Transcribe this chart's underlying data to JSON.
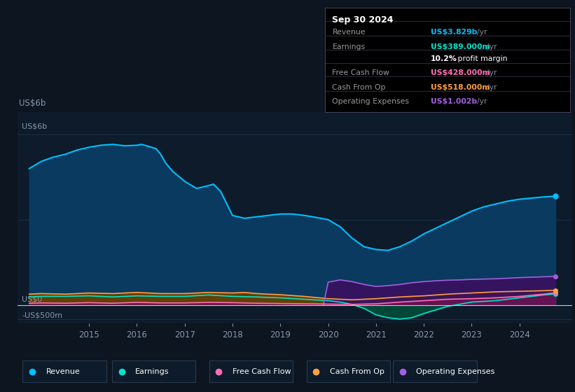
{
  "bg_color": "#0c1520",
  "plot_bg_color": "#0d1b2a",
  "chart_bg_darker": "#091219",
  "ylabel_top": "US$6b",
  "ylabel_zero": "US$0",
  "ylabel_neg": "-US$500m",
  "ylim": [
    -0.65,
    6.8
  ],
  "text_color": "#8899aa",
  "grid_color": "#1e3550",
  "zero_line_color": "#bbccdd",
  "title_box": {
    "date": "Sep 30 2024",
    "rows": [
      {
        "label": "Revenue",
        "value": "US$3.829b",
        "unit": "/yr",
        "value_color": "#00bfff",
        "bold_value": true
      },
      {
        "label": "Earnings",
        "value": "US$389.000m",
        "unit": "/yr",
        "value_color": "#00e5cc",
        "bold_value": true
      },
      {
        "label": "",
        "value": "10.2%",
        "unit": " profit margin",
        "value_color": "#ffffff",
        "bold_value": true
      },
      {
        "label": "Free Cash Flow",
        "value": "US$428.000m",
        "unit": "/yr",
        "value_color": "#ff6eb4",
        "bold_value": true
      },
      {
        "label": "Cash From Op",
        "value": "US$518.000m",
        "unit": "/yr",
        "value_color": "#ffa040",
        "bold_value": true
      },
      {
        "label": "Operating Expenses",
        "value": "US$1.002b",
        "unit": "/yr",
        "value_color": "#a060e0",
        "bold_value": true
      }
    ]
  },
  "series": {
    "revenue": {
      "color": "#00bfff",
      "fill_color": "#0a3a5f",
      "label": "Revenue",
      "x": [
        2013.75,
        2014.0,
        2014.25,
        2014.5,
        2014.75,
        2015.0,
        2015.25,
        2015.5,
        2015.75,
        2016.0,
        2016.1,
        2016.25,
        2016.4,
        2016.5,
        2016.6,
        2016.75,
        2017.0,
        2017.25,
        2017.5,
        2017.6,
        2017.75,
        2018.0,
        2018.25,
        2018.5,
        2018.75,
        2019.0,
        2019.25,
        2019.5,
        2019.75,
        2020.0,
        2020.25,
        2020.5,
        2020.75,
        2021.0,
        2021.25,
        2021.5,
        2021.75,
        2022.0,
        2022.25,
        2022.5,
        2022.75,
        2023.0,
        2023.25,
        2023.5,
        2023.75,
        2024.0,
        2024.5,
        2024.75
      ],
      "y": [
        4.8,
        5.05,
        5.2,
        5.3,
        5.45,
        5.55,
        5.62,
        5.65,
        5.6,
        5.62,
        5.65,
        5.58,
        5.5,
        5.3,
        5.0,
        4.7,
        4.35,
        4.1,
        4.2,
        4.25,
        4.0,
        3.15,
        3.05,
        3.1,
        3.15,
        3.2,
        3.2,
        3.15,
        3.08,
        3.0,
        2.75,
        2.35,
        2.05,
        1.95,
        1.92,
        2.05,
        2.25,
        2.5,
        2.7,
        2.9,
        3.1,
        3.3,
        3.45,
        3.55,
        3.65,
        3.72,
        3.8,
        3.829
      ]
    },
    "earnings": {
      "color": "#00e5cc",
      "fill_color": "#004d3a",
      "label": "Earnings",
      "x": [
        2013.75,
        2014.0,
        2014.5,
        2015.0,
        2015.5,
        2016.0,
        2016.5,
        2017.0,
        2017.5,
        2018.0,
        2018.5,
        2019.0,
        2019.5,
        2020.0,
        2020.25,
        2020.5,
        2020.75,
        2021.0,
        2021.25,
        2021.5,
        2021.75,
        2022.0,
        2022.5,
        2023.0,
        2023.5,
        2024.0,
        2024.5,
        2024.75
      ],
      "y": [
        0.28,
        0.3,
        0.3,
        0.32,
        0.28,
        0.32,
        0.3,
        0.3,
        0.35,
        0.3,
        0.28,
        0.25,
        0.2,
        0.15,
        0.1,
        0.02,
        -0.12,
        -0.35,
        -0.45,
        -0.5,
        -0.45,
        -0.3,
        -0.05,
        0.1,
        0.15,
        0.25,
        0.35,
        0.389
      ]
    },
    "cash_from_op": {
      "color": "#ffa040",
      "fill_color": "#6b4000",
      "label": "Cash From Op",
      "x": [
        2013.75,
        2014.0,
        2014.5,
        2015.0,
        2015.5,
        2016.0,
        2016.5,
        2017.0,
        2017.5,
        2018.0,
        2018.25,
        2018.5,
        2019.0,
        2019.5,
        2020.0,
        2020.5,
        2021.0,
        2021.5,
        2022.0,
        2022.5,
        2023.0,
        2023.5,
        2024.0,
        2024.5,
        2024.75
      ],
      "y": [
        0.38,
        0.4,
        0.38,
        0.42,
        0.4,
        0.44,
        0.4,
        0.4,
        0.44,
        0.42,
        0.44,
        0.4,
        0.36,
        0.3,
        0.22,
        0.18,
        0.22,
        0.28,
        0.32,
        0.38,
        0.42,
        0.46,
        0.48,
        0.5,
        0.518
      ]
    },
    "free_cash_flow": {
      "color": "#ff6eb4",
      "fill_color": "#6b1550",
      "label": "Free Cash Flow",
      "x": [
        2013.75,
        2014.0,
        2014.5,
        2015.0,
        2015.5,
        2016.0,
        2016.5,
        2017.0,
        2017.5,
        2018.0,
        2018.5,
        2019.0,
        2019.5,
        2020.0,
        2020.5,
        2021.0,
        2021.5,
        2022.0,
        2022.5,
        2023.0,
        2023.5,
        2024.0,
        2024.5,
        2024.75
      ],
      "y": [
        0.06,
        0.07,
        0.06,
        0.08,
        0.06,
        0.09,
        0.07,
        0.07,
        0.09,
        0.08,
        0.06,
        0.05,
        0.04,
        0.03,
        0.02,
        0.04,
        0.1,
        0.15,
        0.2,
        0.22,
        0.25,
        0.3,
        0.38,
        0.428
      ]
    },
    "operating_expenses": {
      "color": "#a060e0",
      "fill_color": "#3a1060",
      "label": "Operating Expenses",
      "x": [
        2019.9,
        2020.0,
        2020.25,
        2020.5,
        2020.75,
        2021.0,
        2021.25,
        2021.5,
        2021.75,
        2022.0,
        2022.25,
        2022.5,
        2022.75,
        2023.0,
        2023.25,
        2023.5,
        2023.75,
        2024.0,
        2024.5,
        2024.75
      ],
      "y": [
        0.0,
        0.8,
        0.88,
        0.82,
        0.72,
        0.65,
        0.68,
        0.72,
        0.78,
        0.82,
        0.85,
        0.87,
        0.88,
        0.9,
        0.91,
        0.92,
        0.94,
        0.96,
        0.99,
        1.002
      ]
    }
  },
  "legend_items": [
    {
      "label": "Revenue",
      "color": "#00bfff"
    },
    {
      "label": "Earnings",
      "color": "#00e5cc"
    },
    {
      "label": "Free Cash Flow",
      "color": "#ff6eb4"
    },
    {
      "label": "Cash From Op",
      "color": "#ffa040"
    },
    {
      "label": "Operating Expenses",
      "color": "#a060e0"
    }
  ]
}
